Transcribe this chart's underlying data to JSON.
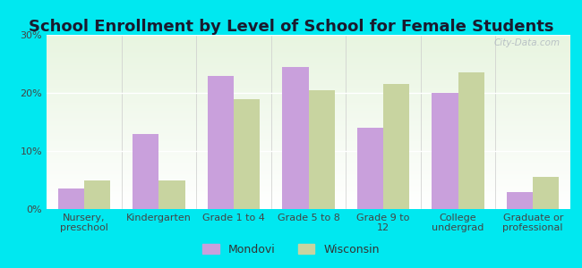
{
  "title": "School Enrollment by Level of School for Female Students",
  "categories": [
    "Nursery,\npreschool",
    "Kindergarten",
    "Grade 1 to 4",
    "Grade 5 to 8",
    "Grade 9 to\n12",
    "College\nundergrad",
    "Graduate or\nprofessional"
  ],
  "mondovi": [
    3.5,
    13.0,
    23.0,
    24.5,
    14.0,
    20.0,
    3.0
  ],
  "wisconsin": [
    5.0,
    5.0,
    19.0,
    20.5,
    21.5,
    23.5,
    5.5
  ],
  "mondovi_color": "#c9a0dc",
  "wisconsin_color": "#c8d4a0",
  "background_outer": "#00e8f0",
  "background_inner_top": "#e8f5e0",
  "background_inner_bottom": "#ffffff",
  "ylim": [
    0,
    30
  ],
  "yticks": [
    0,
    10,
    20,
    30
  ],
  "legend_labels": [
    "Mondovi",
    "Wisconsin"
  ],
  "title_fontsize": 13,
  "tick_fontsize": 8,
  "legend_fontsize": 9,
  "bar_width": 0.35
}
